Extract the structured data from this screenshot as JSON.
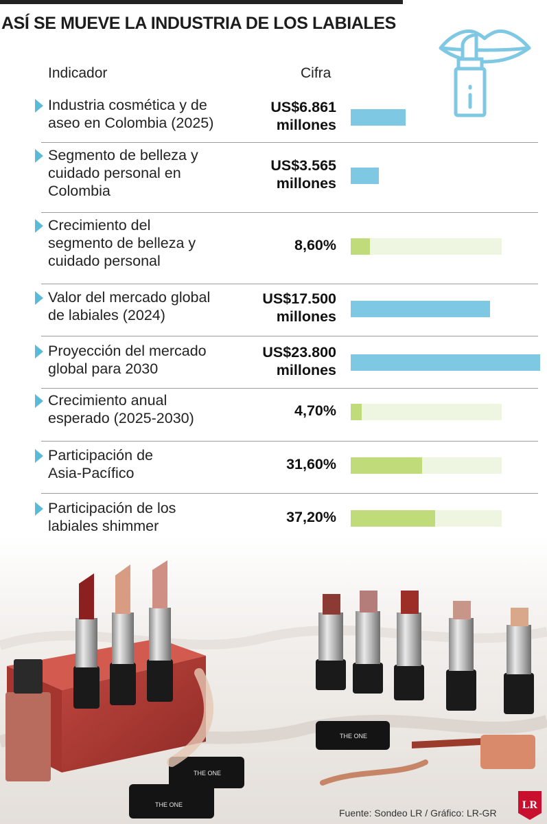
{
  "title": "ASÍ SE MUEVE LA INDUSTRIA DE LOS LABIALES",
  "headers": {
    "indicator": "Indicador",
    "value": "Cifra"
  },
  "colors": {
    "usd_bar": "#7ec8e3",
    "pct_bar": "#c0dc7a",
    "pct_track": "#eef6e2",
    "arrow": "#5bbad8",
    "lr_red": "#c8102e"
  },
  "chart_data": {
    "type": "bar",
    "categories": [
      "Industria cosmética y de aseo en Colombia (2025)",
      "Segmento de belleza y cuidado personal en Colombia",
      "Crecimiento del segmento de belleza y cuidado personal",
      "Valor del mercado global de labiales (2024)",
      "Proyección del mercado global para 2030",
      "Crecimiento anual esperado (2025-2030)",
      "Participación de Asia-Pacífico",
      "Participación de los labiales shimmer"
    ],
    "series": [
      {
        "unit": "US$ millones",
        "values": [
          6861,
          3565,
          null,
          17500,
          23800,
          null,
          null,
          null
        ]
      },
      {
        "unit": "%",
        "values": [
          null,
          null,
          8.6,
          null,
          null,
          4.7,
          31.6,
          37.2
        ]
      }
    ]
  },
  "rows": [
    {
      "label_lines": [
        "Industria cosmética y de",
        "aseo en Colombia (2025)"
      ],
      "value_lines": [
        "US$6.861",
        "millones"
      ],
      "kind": "usd",
      "value": 6861
    },
    {
      "label_lines": [
        "Segmento de belleza y",
        "cuidado personal en",
        "Colombia"
      ],
      "value_lines": [
        "US$3.565",
        "millones"
      ],
      "kind": "usd",
      "value": 3565
    },
    {
      "label_lines": [
        "Crecimiento del",
        "segmento de belleza y",
        "cuidado personal"
      ],
      "value_lines": [
        "8,60%"
      ],
      "kind": "pct",
      "value": 8.6
    },
    {
      "label_lines": [
        "Valor del mercado global",
        "de labiales (2024)"
      ],
      "value_lines": [
        "US$17.500",
        "millones"
      ],
      "kind": "usd",
      "value": 17500
    },
    {
      "label_lines": [
        "Proyección del mercado",
        "global para 2030"
      ],
      "value_lines": [
        "US$23.800",
        "millones"
      ],
      "kind": "usd",
      "value": 23800
    },
    {
      "label_lines": [
        "Crecimiento anual",
        "esperado (2025-2030)"
      ],
      "value_lines": [
        "4,70%"
      ],
      "kind": "pct",
      "value": 4.7
    },
    {
      "label_lines": [
        "Participación de",
        "Asia-Pacífico"
      ],
      "value_lines": [
        "31,60%"
      ],
      "kind": "pct",
      "value": 31.6
    },
    {
      "label_lines": [
        "Participación de los",
        "labiales shimmer"
      ],
      "value_lines": [
        "37,20%"
      ],
      "kind": "pct",
      "value": 37.2
    }
  ],
  "photo": {
    "brand_text": "THE ONE"
  },
  "footer": {
    "source": "Fuente: Sondeo LR / Gráfico: LR-GR",
    "logo_text": "LR"
  }
}
